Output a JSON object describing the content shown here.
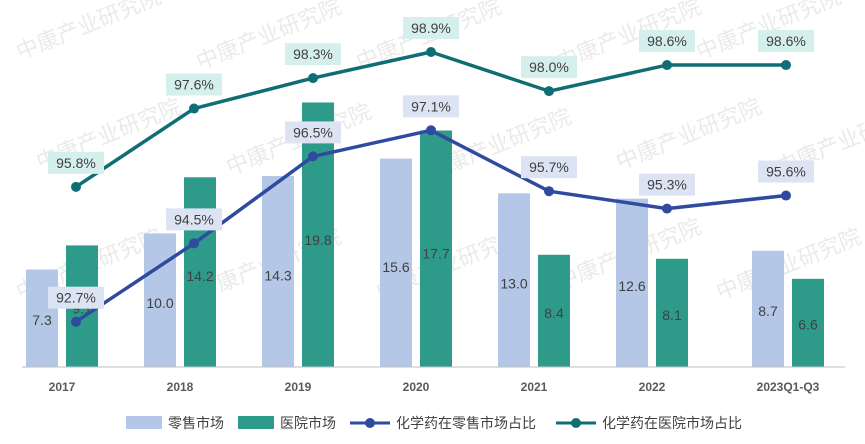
{
  "chart_data": {
    "type": "bar",
    "categories": [
      "2017",
      "2018",
      "2019",
      "2020",
      "2021",
      "2022",
      "2023Q1-Q3"
    ],
    "bar_series": [
      {
        "name": "零售市场",
        "color": "#b4c7e7",
        "values": [
          7.3,
          10.0,
          14.3,
          15.6,
          13.0,
          12.6,
          8.7
        ]
      },
      {
        "name": "医院市场",
        "color": "#2e9b8a",
        "values": [
          9.1,
          14.2,
          19.8,
          17.7,
          8.4,
          8.1,
          6.6
        ]
      }
    ],
    "line_series": [
      {
        "name": "化学药在零售市场占比",
        "color": "#2f4a9e",
        "label_bg": "#dce3f3",
        "values": [
          92.7,
          94.5,
          96.5,
          97.1,
          95.7,
          95.3,
          95.6
        ],
        "labels": [
          "92.7%",
          "94.5%",
          "96.5%",
          "97.1%",
          "95.7%",
          "95.3%",
          "95.6%"
        ]
      },
      {
        "name": "化学药在医院市场占比",
        "color": "#0e6e74",
        "label_bg": "#d5f0ec",
        "values": [
          95.8,
          97.6,
          98.3,
          98.9,
          98.0,
          98.6,
          98.6
        ],
        "labels": [
          "95.8%",
          "97.6%",
          "98.3%",
          "98.9%",
          "98.0%",
          "98.6%",
          "98.6%"
        ]
      }
    ],
    "bar_axis_range": [
      0,
      21
    ],
    "line_axis_range": [
      88,
      100.5
    ],
    "grid": false,
    "legend_position": "bottom"
  },
  "watermark_text": "中康产业研究院"
}
